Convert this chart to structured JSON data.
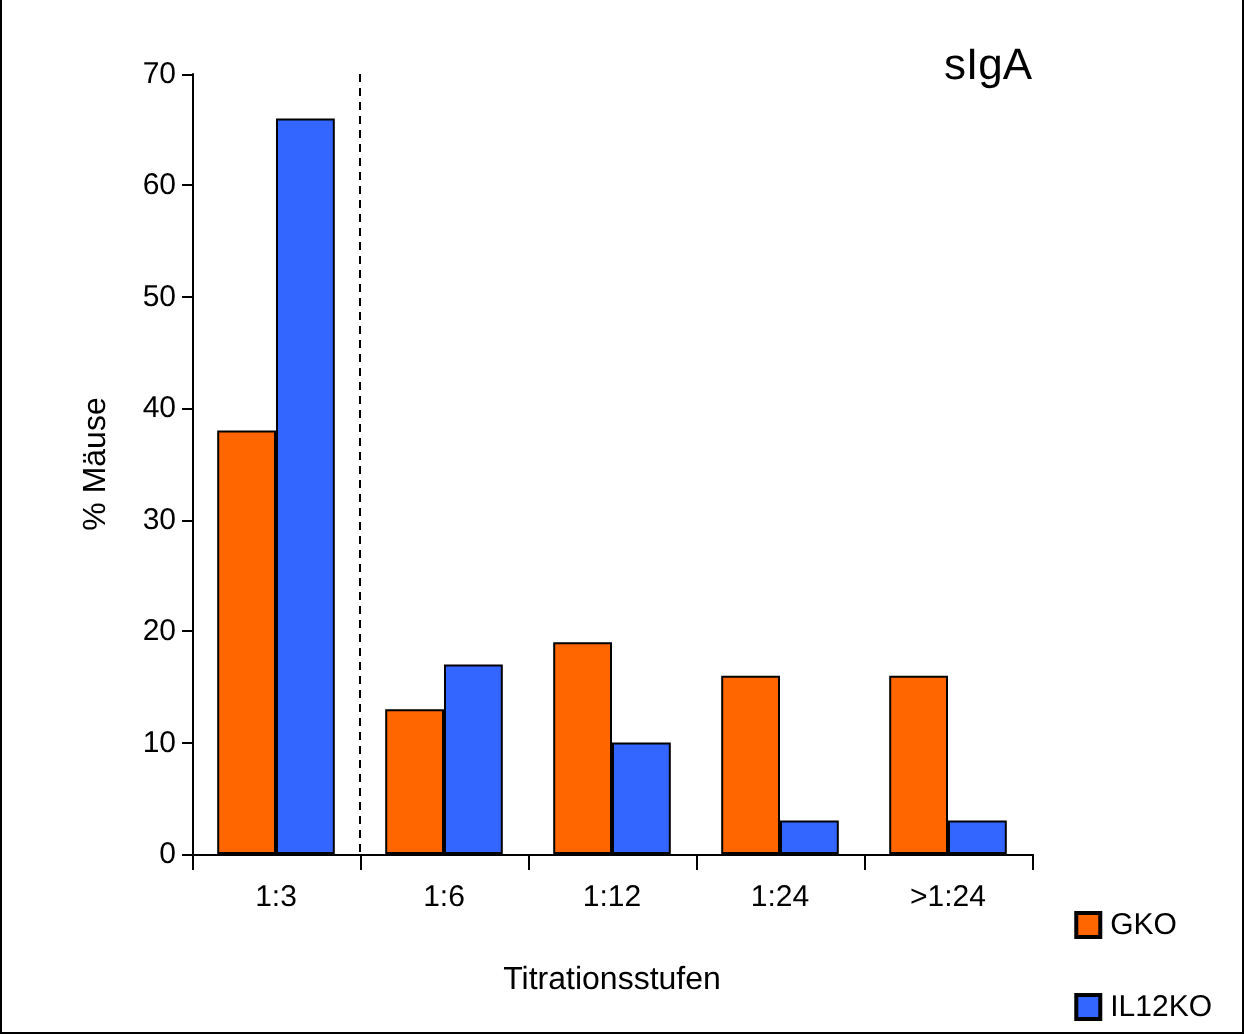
{
  "chart_data": {
    "type": "bar",
    "title": "sIgA",
    "xlabel": "Titrationsstufen",
    "ylabel": "% Mäuse",
    "categories": [
      "1:3",
      "1:6",
      "1:12",
      "1:24",
      ">1:24"
    ],
    "series": [
      {
        "name": "GKO",
        "color": "#ff6600",
        "values": [
          38,
          13,
          19,
          16,
          16
        ]
      },
      {
        "name": "IL12KO",
        "color": "#3366ff",
        "values": [
          66,
          17,
          10,
          3,
          3
        ]
      }
    ],
    "ylim": [
      0,
      70
    ],
    "yticks": [
      0,
      10,
      20,
      30,
      40,
      50,
      60,
      70
    ],
    "grid": false,
    "legend": "bottom right"
  }
}
